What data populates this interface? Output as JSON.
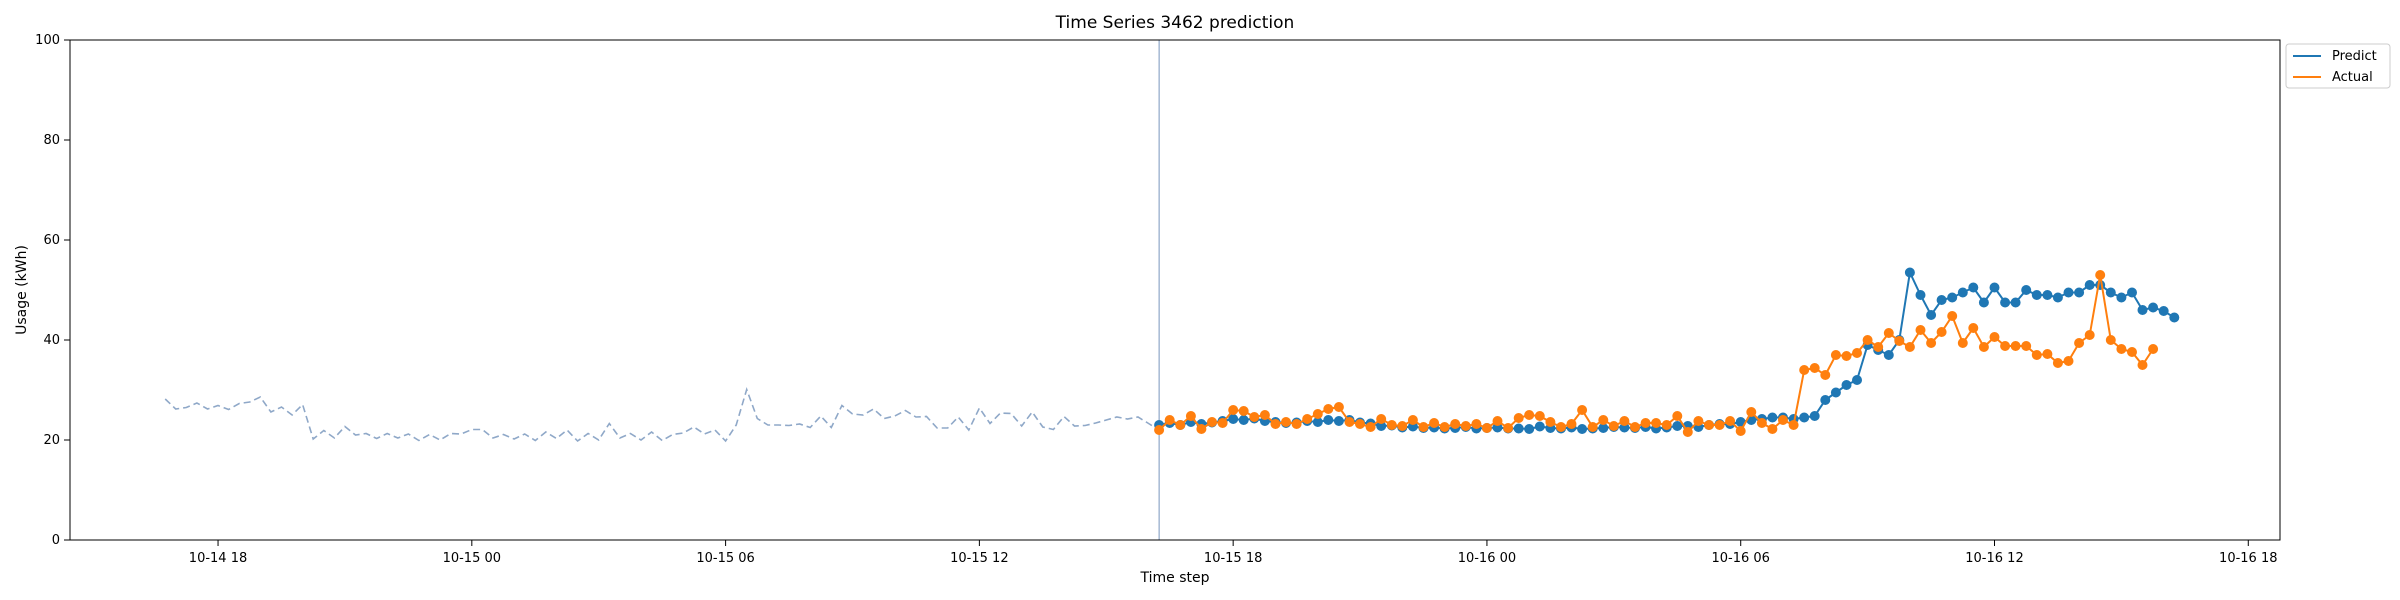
{
  "chart_data": {
    "type": "line",
    "title": "Time Series 3462 prediction",
    "xlabel": "Time step",
    "ylabel": "Usage (kWh)",
    "ylim": [
      0,
      100
    ],
    "yticks": [
      0,
      20,
      40,
      60,
      80,
      100
    ],
    "xlim": [
      "2023-10-14 14:30",
      "2023-10-16 18:45"
    ],
    "xticks": [
      {
        "t": "2023-10-14 18:00",
        "label": "10-14 18"
      },
      {
        "t": "2023-10-15 00:00",
        "label": "10-15 00"
      },
      {
        "t": "2023-10-15 06:00",
        "label": "10-15 06"
      },
      {
        "t": "2023-10-15 12:00",
        "label": "10-15 12"
      },
      {
        "t": "2023-10-15 18:00",
        "label": "10-15 18"
      },
      {
        "t": "2023-10-16 00:00",
        "label": "10-16 00"
      },
      {
        "t": "2023-10-16 06:00",
        "label": "10-16 06"
      },
      {
        "t": "2023-10-16 12:00",
        "label": "10-16 12"
      },
      {
        "t": "2023-10-16 18:00",
        "label": "10-16 18"
      }
    ],
    "grid": false,
    "legend_position": "top-right",
    "forecast_start": "2023-10-15 16:15",
    "colors": {
      "predict": "#1f77b4",
      "actual": "#ff7f0e",
      "history": "#8fa8c8",
      "divider": "#8fa8c8"
    },
    "history": {
      "start": "2023-10-14 16:45",
      "step_minutes": 15,
      "values": [
        28.2,
        26.2,
        26.5,
        27.4,
        26.2,
        26.9,
        26.1,
        27.3,
        27.6,
        28.6,
        25.6,
        26.6,
        25.0,
        27.1,
        20.2,
        21.9,
        20.4,
        22.7,
        21.0,
        21.3,
        20.3,
        21.3,
        20.4,
        21.2,
        19.9,
        21.1,
        20.0,
        21.3,
        21.2,
        22.1,
        22.1,
        20.4,
        21.1,
        20.2,
        21.2,
        19.9,
        21.6,
        20.3,
        22.0,
        19.8,
        21.3,
        20.0,
        23.3,
        20.4,
        21.3,
        20.0,
        21.6,
        19.9,
        21.1,
        21.4,
        22.6,
        21.2,
        22.0,
        19.8,
        23.0,
        30.1,
        24.3,
        23.0,
        23.0,
        22.9,
        23.2,
        22.5,
        24.8,
        22.5,
        26.9,
        25.2,
        25.0,
        26.2,
        24.3,
        24.8,
        25.9,
        24.6,
        24.7,
        22.4,
        22.4,
        24.6,
        22.0,
        26.4,
        23.3,
        25.4,
        25.3,
        22.8,
        25.6,
        22.6,
        22.1,
        24.7,
        22.8,
        22.9,
        23.4,
        24.0,
        24.6,
        24.2,
        24.6,
        23.3,
        22.0,
        24.3
      ]
    },
    "series": [
      {
        "name": "Predict",
        "start": "2023-10-15 16:15",
        "step_minutes": 15,
        "values": [
          23.0,
          23.4,
          23.0,
          23.6,
          23.2,
          23.5,
          23.8,
          24.2,
          24.0,
          24.3,
          23.8,
          23.6,
          23.4,
          23.5,
          23.8,
          23.6,
          24.0,
          23.8,
          24.0,
          23.5,
          23.3,
          22.8,
          22.9,
          22.5,
          22.7,
          22.4,
          22.5,
          22.3,
          22.4,
          22.6,
          22.3,
          22.4,
          22.5,
          22.3,
          22.3,
          22.2,
          22.7,
          22.4,
          22.3,
          22.5,
          22.2,
          22.3,
          22.4,
          22.6,
          22.5,
          22.4,
          22.6,
          22.3,
          22.5,
          22.8,
          22.8,
          22.6,
          23.0,
          23.2,
          23.2,
          23.6,
          24.0,
          24.2,
          24.5,
          24.5,
          24.2,
          24.5,
          24.8,
          28.0,
          29.5,
          31.0,
          32.0,
          39.0,
          38.0,
          37.0,
          40.0,
          53.5,
          49.0,
          45.0,
          48.0,
          48.5,
          49.5,
          50.5,
          47.5,
          50.5,
          47.5,
          47.5,
          50.0,
          49.0,
          49.0,
          48.5,
          49.5,
          49.5,
          51.0,
          51.0,
          49.5,
          48.5,
          49.5,
          46.0,
          46.5,
          45.8,
          44.5
        ]
      },
      {
        "name": "Actual",
        "start": "2023-10-15 16:15",
        "step_minutes": 15,
        "values": [
          22.0,
          24.0,
          23.0,
          24.8,
          22.2,
          23.6,
          23.4,
          26.0,
          25.8,
          24.6,
          25.0,
          23.2,
          23.6,
          23.2,
          24.2,
          25.2,
          26.2,
          26.6,
          23.6,
          23.2,
          22.6,
          24.2,
          23.0,
          22.8,
          24.0,
          22.6,
          23.4,
          22.6,
          23.2,
          22.8,
          23.2,
          22.4,
          23.8,
          22.4,
          24.4,
          25.0,
          24.8,
          23.6,
          22.6,
          23.2,
          26.0,
          22.6,
          24.0,
          22.8,
          23.8,
          22.6,
          23.4,
          23.4,
          23.0,
          24.8,
          21.6,
          23.8,
          23.0,
          23.0,
          23.8,
          21.8,
          25.6,
          23.4,
          22.2,
          24.0,
          23.0,
          34.0,
          34.4,
          33.0,
          37.0,
          36.8,
          37.4,
          40.0,
          38.6,
          41.4,
          39.8,
          38.6,
          42.0,
          39.4,
          41.6,
          44.8,
          39.4,
          42.4,
          38.6,
          40.6,
          38.8,
          38.8,
          38.8,
          37.0,
          37.2,
          35.4,
          35.8,
          39.4,
          41.0,
          53.0,
          40.0,
          38.2,
          37.6,
          35.0,
          38.2
        ]
      }
    ]
  }
}
